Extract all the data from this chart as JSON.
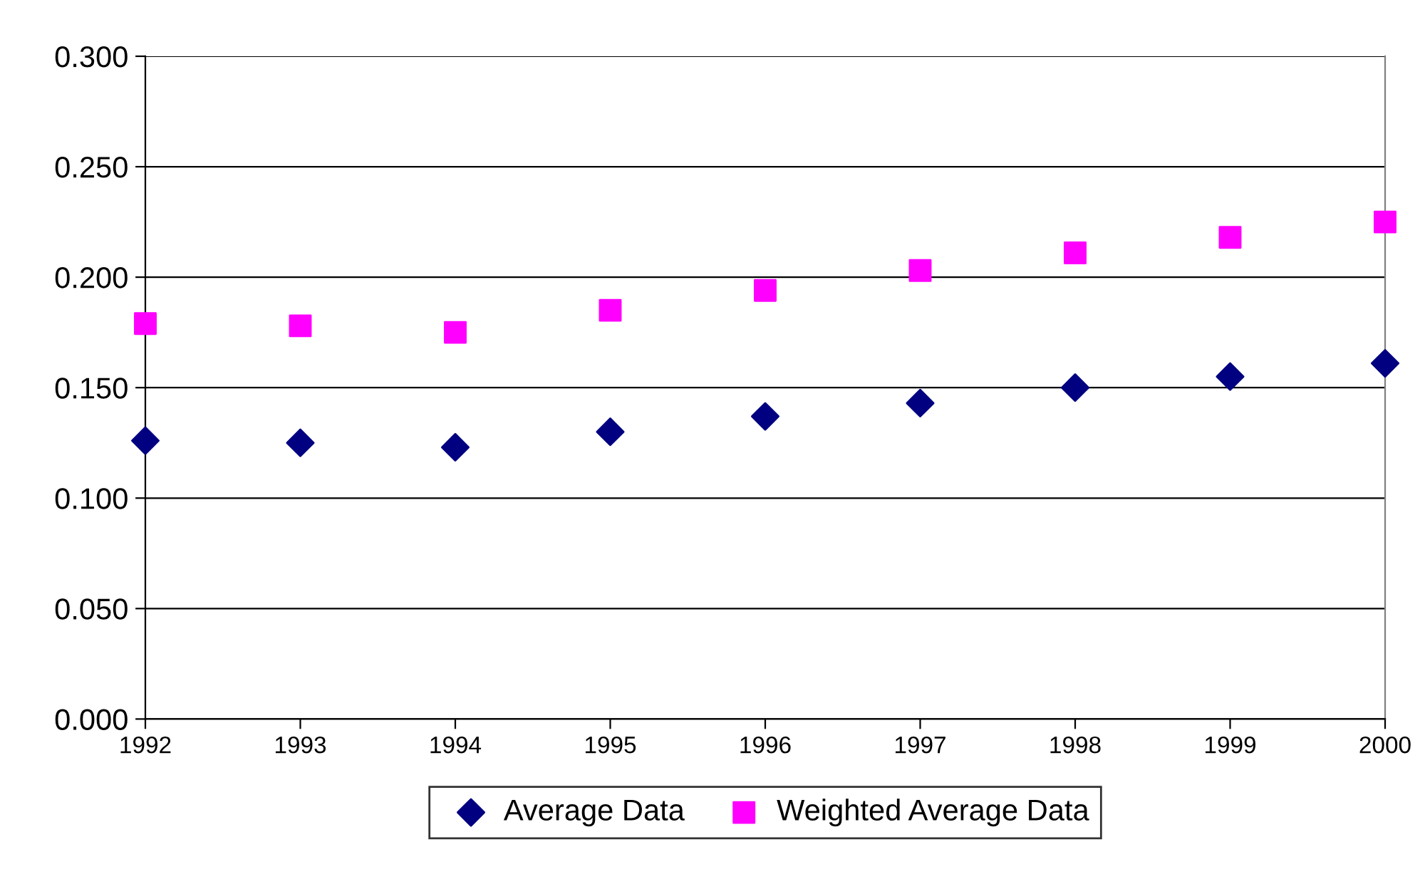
{
  "chart_data": {
    "type": "scatter",
    "x": [
      1992,
      1993,
      1994,
      1995,
      1996,
      1997,
      1998,
      1999,
      2000
    ],
    "series": [
      {
        "name": "Average Data",
        "color": "#000080",
        "marker": "diamond",
        "values": [
          0.126,
          0.125,
          0.123,
          0.13,
          0.137,
          0.143,
          0.15,
          0.155,
          0.161
        ]
      },
      {
        "name": "Weighted Average Data",
        "color": "#ff00ff",
        "marker": "square",
        "values": [
          0.179,
          0.178,
          0.175,
          0.185,
          0.194,
          0.203,
          0.211,
          0.218,
          0.225
        ]
      }
    ],
    "xlim": [
      1992,
      2000
    ],
    "xticks": [
      1992,
      1993,
      1994,
      1995,
      1996,
      1997,
      1998,
      1999,
      2000
    ],
    "ylim": [
      0,
      0.3
    ],
    "yticks": [
      {
        "value": 0,
        "label": "0.000"
      },
      {
        "value": 0.05,
        "label": "0.050"
      },
      {
        "value": 0.1,
        "label": "0.100"
      },
      {
        "value": 0.15,
        "label": "0.150"
      },
      {
        "value": 0.2,
        "label": "0.200"
      },
      {
        "value": 0.25,
        "label": "0.250"
      },
      {
        "value": 0.3,
        "label": "0.300"
      }
    ],
    "grid": "y",
    "legend": "bottom"
  }
}
